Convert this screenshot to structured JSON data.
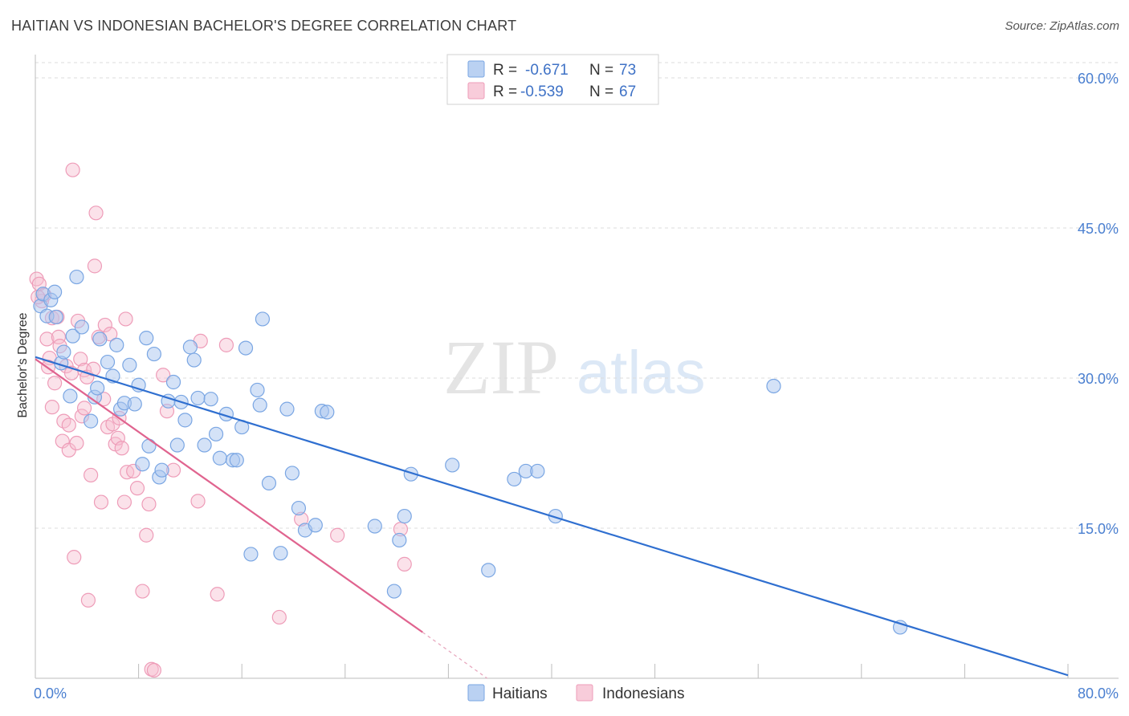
{
  "title": "HAITIAN VS INDONESIAN BACHELOR'S DEGREE CORRELATION CHART",
  "source": "Source: ZipAtlas.com",
  "watermark": {
    "zip": "ZIP",
    "atlas": "atlas"
  },
  "colors": {
    "haitians_fill": "#a9c6ef",
    "haitians_stroke": "#7aa6e3",
    "haitians_line": "#2f6fd0",
    "indonesians_fill": "#f6bfd1",
    "indonesians_stroke": "#ee9cb8",
    "indonesians_line": "#e0648f"
  },
  "legend": {
    "rows": [
      {
        "r_label": "R =",
        "r_value": "-0.671",
        "n_label": "N =",
        "n_value": "73"
      },
      {
        "r_label": "R =",
        "r_value": "-0.539",
        "n_label": "N =",
        "n_value": "67"
      }
    ]
  },
  "chart_data": {
    "type": "scatter",
    "title": "HAITIAN VS INDONESIAN BACHELOR'S DEGREE CORRELATION CHART",
    "xlabel": "",
    "ylabel": "Bachelor's Degree",
    "xlim": [
      0,
      80
    ],
    "ylim": [
      0,
      60
    ],
    "x_tick_labels": [
      "0.0%",
      "80.0%"
    ],
    "y_ticks": [
      15,
      30,
      45,
      60
    ],
    "y_tick_labels": [
      "15.0%",
      "30.0%",
      "45.0%",
      "60.0%"
    ],
    "grid": true,
    "legend_position": "top-center",
    "series": [
      {
        "name": "Haitians",
        "r": -0.671,
        "n": 73,
        "trend": {
          "x0": 0,
          "y0": 32.1,
          "x1": 80,
          "y1": 0.3
        },
        "points": [
          [
            0.4,
            37.2
          ],
          [
            0.6,
            38.4
          ],
          [
            0.9,
            36.2
          ],
          [
            1.2,
            37.8
          ],
          [
            1.5,
            38.6
          ],
          [
            1.6,
            36.1
          ],
          [
            2.0,
            31.5
          ],
          [
            2.2,
            32.6
          ],
          [
            2.7,
            28.2
          ],
          [
            2.9,
            34.2
          ],
          [
            3.2,
            40.1
          ],
          [
            3.6,
            35.1
          ],
          [
            4.3,
            25.7
          ],
          [
            4.6,
            28.1
          ],
          [
            4.8,
            29.0
          ],
          [
            5.0,
            33.9
          ],
          [
            5.6,
            31.6
          ],
          [
            6.0,
            30.2
          ],
          [
            6.3,
            33.3
          ],
          [
            6.6,
            26.9
          ],
          [
            6.9,
            27.5
          ],
          [
            7.3,
            31.3
          ],
          [
            7.7,
            27.4
          ],
          [
            8.0,
            29.3
          ],
          [
            8.3,
            21.4
          ],
          [
            8.6,
            34.0
          ],
          [
            8.8,
            23.2
          ],
          [
            9.2,
            32.4
          ],
          [
            9.6,
            20.1
          ],
          [
            9.8,
            20.8
          ],
          [
            10.3,
            27.7
          ],
          [
            10.7,
            29.6
          ],
          [
            11.0,
            23.3
          ],
          [
            11.3,
            27.6
          ],
          [
            11.6,
            25.8
          ],
          [
            12.0,
            33.1
          ],
          [
            12.3,
            31.8
          ],
          [
            12.6,
            28.0
          ],
          [
            13.1,
            23.3
          ],
          [
            13.6,
            27.9
          ],
          [
            14.0,
            24.4
          ],
          [
            14.3,
            22.0
          ],
          [
            14.8,
            26.4
          ],
          [
            15.3,
            21.8
          ],
          [
            15.6,
            21.8
          ],
          [
            16.0,
            25.1
          ],
          [
            16.3,
            33.0
          ],
          [
            16.7,
            12.4
          ],
          [
            17.2,
            28.8
          ],
          [
            17.4,
            27.3
          ],
          [
            17.6,
            35.9
          ],
          [
            18.1,
            19.5
          ],
          [
            19.0,
            12.5
          ],
          [
            19.5,
            26.9
          ],
          [
            19.9,
            20.5
          ],
          [
            20.4,
            17.0
          ],
          [
            20.9,
            14.8
          ],
          [
            21.7,
            15.3
          ],
          [
            22.2,
            26.7
          ],
          [
            22.6,
            26.6
          ],
          [
            26.3,
            15.2
          ],
          [
            27.8,
            8.7
          ],
          [
            28.2,
            13.8
          ],
          [
            28.6,
            16.2
          ],
          [
            29.1,
            20.4
          ],
          [
            32.3,
            21.3
          ],
          [
            35.1,
            10.8
          ],
          [
            37.1,
            19.9
          ],
          [
            38.0,
            20.7
          ],
          [
            38.9,
            20.7
          ],
          [
            40.3,
            16.2
          ],
          [
            57.2,
            29.2
          ],
          [
            67.0,
            5.1
          ]
        ]
      },
      {
        "name": "Indonesians",
        "r": -0.539,
        "n": 67,
        "trend": {
          "x0": 0,
          "y0": 31.9,
          "x1": 30.0,
          "y1": 4.6
        },
        "trend_dashed": {
          "x0": 30.0,
          "y0": 4.6,
          "x1": 35.0,
          "y1": 0.0
        },
        "points": [
          [
            0.1,
            39.9
          ],
          [
            0.3,
            39.4
          ],
          [
            0.5,
            37.7
          ],
          [
            0.7,
            38.3
          ],
          [
            0.9,
            33.9
          ],
          [
            1.1,
            32.0
          ],
          [
            1.3,
            36.0
          ],
          [
            1.3,
            27.1
          ],
          [
            1.5,
            29.5
          ],
          [
            1.7,
            36.1
          ],
          [
            1.8,
            34.1
          ],
          [
            1.9,
            33.2
          ],
          [
            2.1,
            23.7
          ],
          [
            2.2,
            25.7
          ],
          [
            2.4,
            31.2
          ],
          [
            2.6,
            22.8
          ],
          [
            2.6,
            25.3
          ],
          [
            2.8,
            30.5
          ],
          [
            2.9,
            50.8
          ],
          [
            3.0,
            12.1
          ],
          [
            3.2,
            23.5
          ],
          [
            3.3,
            35.7
          ],
          [
            3.5,
            31.9
          ],
          [
            3.6,
            26.2
          ],
          [
            3.8,
            30.8
          ],
          [
            3.8,
            27.0
          ],
          [
            4.0,
            30.1
          ],
          [
            4.1,
            7.8
          ],
          [
            4.3,
            20.3
          ],
          [
            4.5,
            30.9
          ],
          [
            4.6,
            41.2
          ],
          [
            4.7,
            46.5
          ],
          [
            4.9,
            34.1
          ],
          [
            5.1,
            17.6
          ],
          [
            5.3,
            27.9
          ],
          [
            5.4,
            35.3
          ],
          [
            5.6,
            25.1
          ],
          [
            5.8,
            34.4
          ],
          [
            6.0,
            25.4
          ],
          [
            6.2,
            23.4
          ],
          [
            6.4,
            24.0
          ],
          [
            6.5,
            26.0
          ],
          [
            6.7,
            23.0
          ],
          [
            6.9,
            17.6
          ],
          [
            7.0,
            35.9
          ],
          [
            7.1,
            20.6
          ],
          [
            7.6,
            20.7
          ],
          [
            7.9,
            19.0
          ],
          [
            8.3,
            8.7
          ],
          [
            8.6,
            14.3
          ],
          [
            8.8,
            17.4
          ],
          [
            9.0,
            0.9
          ],
          [
            9.2,
            0.8
          ],
          [
            9.9,
            30.3
          ],
          [
            10.2,
            26.7
          ],
          [
            10.7,
            20.8
          ],
          [
            12.6,
            17.7
          ],
          [
            12.8,
            33.7
          ],
          [
            14.1,
            8.4
          ],
          [
            14.8,
            33.3
          ],
          [
            18.9,
            6.1
          ],
          [
            20.6,
            15.9
          ],
          [
            23.4,
            14.3
          ],
          [
            28.3,
            14.9
          ],
          [
            28.6,
            11.4
          ],
          [
            0.2,
            38.1
          ],
          [
            1.0,
            31.1
          ]
        ]
      }
    ]
  },
  "bottom_legend": [
    {
      "label": "Haitians"
    },
    {
      "label": "Indonesians"
    }
  ]
}
